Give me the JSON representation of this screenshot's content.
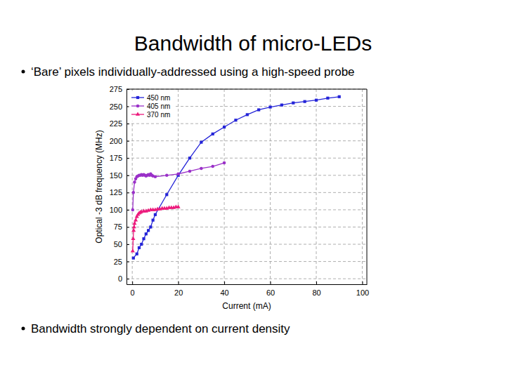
{
  "slide": {
    "title": "Bandwidth of micro-LEDs",
    "bullets": [
      "‘Bare’ pixels individually-addressed using a high-speed probe",
      "Bandwidth strongly dependent on current density"
    ]
  },
  "chart_data": {
    "type": "line",
    "x_label": "Current (mA)",
    "y_label": "Optical -3 dB frequency (MHz)",
    "xlim": [
      -2.5,
      102
    ],
    "xticks": [
      0,
      20,
      40,
      60,
      80,
      100
    ],
    "ylim": [
      -8,
      275
    ],
    "yticks": [
      0,
      25,
      50,
      75,
      100,
      125,
      150,
      175,
      200,
      225,
      250,
      275
    ],
    "grid": true,
    "legend": "upper left",
    "series": [
      {
        "name": "450 nm",
        "color": "#2424d8",
        "marker": "square",
        "line_style": "solid",
        "x": [
          0.5,
          2,
          3,
          4,
          5,
          6,
          7,
          8,
          9,
          10,
          15,
          20,
          25,
          30,
          35,
          40,
          45,
          50,
          55,
          60,
          65,
          70,
          75,
          80,
          85,
          90
        ],
        "values": [
          30,
          36,
          45,
          50,
          58,
          65,
          70,
          75,
          85,
          93,
          122,
          150,
          175,
          198,
          210,
          220,
          230,
          238,
          245,
          249,
          252,
          255,
          257,
          259,
          262,
          264
        ]
      },
      {
        "name": "405 nm",
        "color": "#9a30c8",
        "marker": "circle",
        "line_style": "solid",
        "x": [
          0.2,
          0.5,
          1,
          1.5,
          2,
          2.5,
          3,
          3.5,
          4,
          4.5,
          5,
          5.5,
          6,
          6.5,
          7,
          7.5,
          8,
          8.5,
          9,
          10,
          15,
          20,
          25,
          30,
          35,
          40
        ],
        "values": [
          100,
          125,
          140,
          145,
          148,
          149,
          150,
          150,
          151,
          150,
          151,
          150,
          149,
          150,
          151,
          150,
          152,
          150,
          149,
          148,
          150,
          152,
          156,
          160,
          163,
          168
        ]
      },
      {
        "name": "370 nm",
        "color": "#ec1a7c",
        "marker": "triangle",
        "line_style": "solid",
        "x": [
          0.2,
          0.4,
          0.6,
          0.8,
          1,
          1.5,
          2,
          2.5,
          3,
          3.5,
          4,
          5,
          6,
          7,
          8,
          9,
          10,
          11,
          12,
          13,
          14,
          15,
          16,
          17,
          18,
          19,
          20
        ],
        "values": [
          40,
          58,
          70,
          75,
          80,
          85,
          90,
          93,
          95,
          96,
          97,
          98,
          98,
          99,
          100,
          100,
          100,
          101,
          101,
          102,
          102,
          102,
          103,
          103,
          103,
          104,
          104
        ]
      }
    ]
  }
}
